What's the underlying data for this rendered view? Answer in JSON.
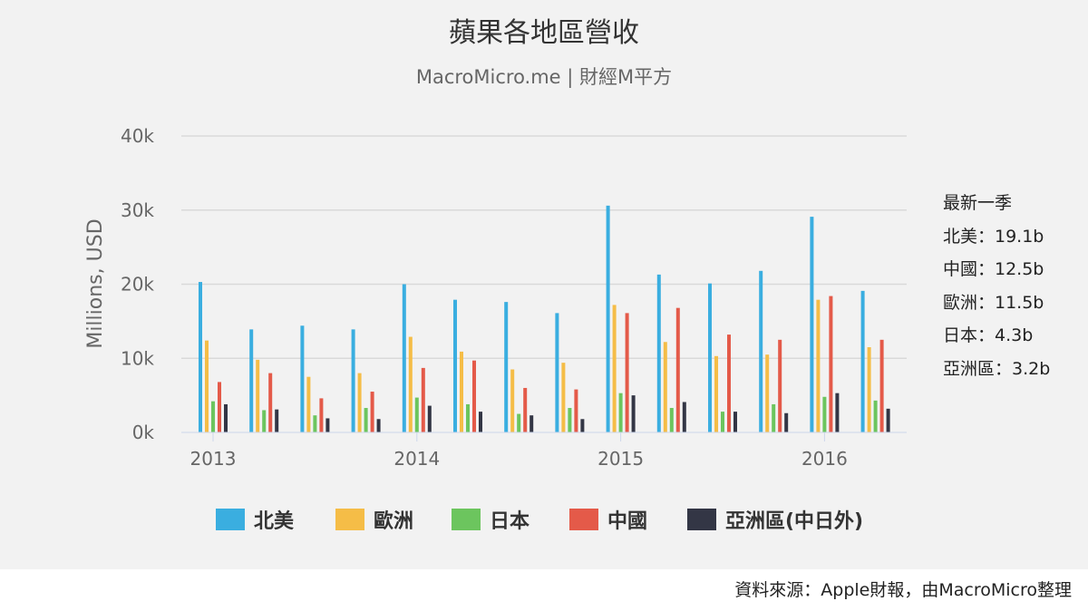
{
  "chart_data": {
    "type": "bar",
    "title": "蘋果各地區營收",
    "subtitle": "MacroMicro.me | 財經M平方",
    "ylabel": "Millions, USD",
    "ylim": [
      0,
      40000
    ],
    "y_ticks": [
      {
        "value": 0,
        "label": "0k"
      },
      {
        "value": 10000,
        "label": "10k"
      },
      {
        "value": 20000,
        "label": "20k"
      },
      {
        "value": 30000,
        "label": "30k"
      },
      {
        "value": 40000,
        "label": "40k"
      }
    ],
    "x_ticks": [
      {
        "index": 0,
        "label": "2013"
      },
      {
        "index": 4,
        "label": "2014"
      },
      {
        "index": 8,
        "label": "2015"
      },
      {
        "index": 12,
        "label": "2016"
      }
    ],
    "categories": [
      "2013Q1",
      "2013Q2",
      "2013Q3",
      "2013Q4",
      "2014Q1",
      "2014Q2",
      "2014Q3",
      "2014Q4",
      "2015Q1",
      "2015Q2",
      "2015Q3",
      "2015Q4",
      "2016Q1",
      "2016Q2"
    ],
    "grid": true,
    "legend_position": "bottom",
    "series": [
      {
        "name": "北美",
        "color": "#3aaee0",
        "values": [
          20300,
          13900,
          14400,
          13900,
          20000,
          17900,
          17600,
          16100,
          30600,
          21300,
          20100,
          21800,
          29100,
          19100
        ]
      },
      {
        "name": "歐洲",
        "color": "#f5bd47",
        "values": [
          12400,
          9800,
          7500,
          8000,
          12900,
          10900,
          8500,
          9400,
          17200,
          12200,
          10300,
          10500,
          17900,
          11500
        ]
      },
      {
        "name": "日本",
        "color": "#6cc55e",
        "values": [
          4200,
          3000,
          2300,
          3300,
          4700,
          3800,
          2500,
          3300,
          5300,
          3300,
          2800,
          3800,
          4800,
          4300
        ]
      },
      {
        "name": "中國",
        "color": "#e45a49",
        "values": [
          6800,
          8000,
          4600,
          5500,
          8700,
          9700,
          6000,
          5800,
          16100,
          16800,
          13200,
          12500,
          18400,
          12500
        ]
      },
      {
        "name": "亞洲區(中日外)",
        "color": "#333645",
        "values": [
          3800,
          3100,
          1900,
          1800,
          3600,
          2800,
          2300,
          1800,
          5000,
          4100,
          2800,
          2600,
          5300,
          3200
        ]
      }
    ]
  },
  "notes": {
    "heading": "最新一季",
    "lines": [
      "北美：19.1b",
      "中國：12.5b",
      "歐洲：11.5b",
      "日本：4.3b",
      "亞洲區：3.2b"
    ]
  },
  "source": "資料來源：Apple財報，由MacroMicro整理"
}
